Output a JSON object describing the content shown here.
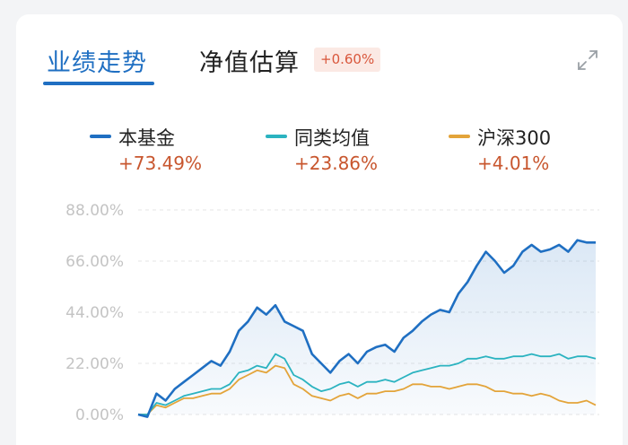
{
  "tabs": {
    "performance": "业绩走势",
    "nav_estimate": "净值估算",
    "nav_estimate_change": "+0.60%"
  },
  "legend": [
    {
      "name": "本基金",
      "value": "+73.49%",
      "color": "#1f6fc2"
    },
    {
      "name": "同类均值",
      "value": "+23.86%",
      "color": "#2bb3c0"
    },
    {
      "name": "沪深300",
      "value": "+4.01%",
      "color": "#e3a43a"
    }
  ],
  "icons": {
    "expand": "expand-icon"
  },
  "chart_data": {
    "type": "line",
    "y_ticks": [
      "88.00%",
      "66.00%",
      "44.00%",
      "22.00%",
      "0.00%"
    ],
    "ylim": [
      0,
      88
    ],
    "grid": true,
    "x": [
      0,
      2,
      4,
      6,
      8,
      10,
      12,
      14,
      16,
      18,
      20,
      22,
      24,
      26,
      28,
      30,
      32,
      34,
      36,
      38,
      40,
      42,
      44,
      46,
      48,
      50,
      52,
      54,
      56,
      58,
      60,
      62,
      64,
      66,
      68,
      70,
      72,
      74,
      76,
      78,
      80,
      82,
      84,
      86,
      88,
      90,
      92,
      94,
      96,
      98,
      100
    ],
    "series": [
      {
        "name": "本基金",
        "color": "#1f6fc2",
        "values": [
          0,
          -1,
          9,
          6,
          11,
          14,
          17,
          20,
          23,
          21,
          27,
          36,
          40,
          46,
          43,
          47,
          40,
          38,
          36,
          26,
          22,
          18,
          23,
          26,
          22,
          27,
          29,
          30,
          27,
          33,
          36,
          40,
          43,
          45,
          44,
          52,
          57,
          64,
          70,
          66,
          61,
          64,
          70,
          73,
          70,
          71,
          73,
          70,
          75,
          74,
          74
        ]
      },
      {
        "name": "同类均值",
        "color": "#2bb3c0",
        "values": [
          0,
          0,
          5,
          4,
          6,
          8,
          9,
          10,
          11,
          11,
          13,
          18,
          19,
          21,
          20,
          26,
          24,
          17,
          15,
          12,
          10,
          11,
          13,
          14,
          12,
          14,
          14,
          15,
          14,
          16,
          18,
          19,
          20,
          21,
          21,
          22,
          24,
          24,
          25,
          24,
          24,
          25,
          25,
          26,
          25,
          25,
          26,
          24,
          25,
          25,
          24
        ]
      },
      {
        "name": "沪深300",
        "color": "#e3a43a",
        "values": [
          0,
          0,
          4,
          3,
          5,
          7,
          7,
          8,
          9,
          9,
          11,
          15,
          17,
          19,
          18,
          21,
          20,
          13,
          11,
          8,
          7,
          6,
          8,
          9,
          7,
          9,
          9,
          10,
          10,
          11,
          13,
          13,
          12,
          12,
          11,
          12,
          13,
          13,
          12,
          10,
          10,
          9,
          9,
          8,
          9,
          8,
          6,
          5,
          5,
          6,
          4
        ]
      }
    ]
  }
}
